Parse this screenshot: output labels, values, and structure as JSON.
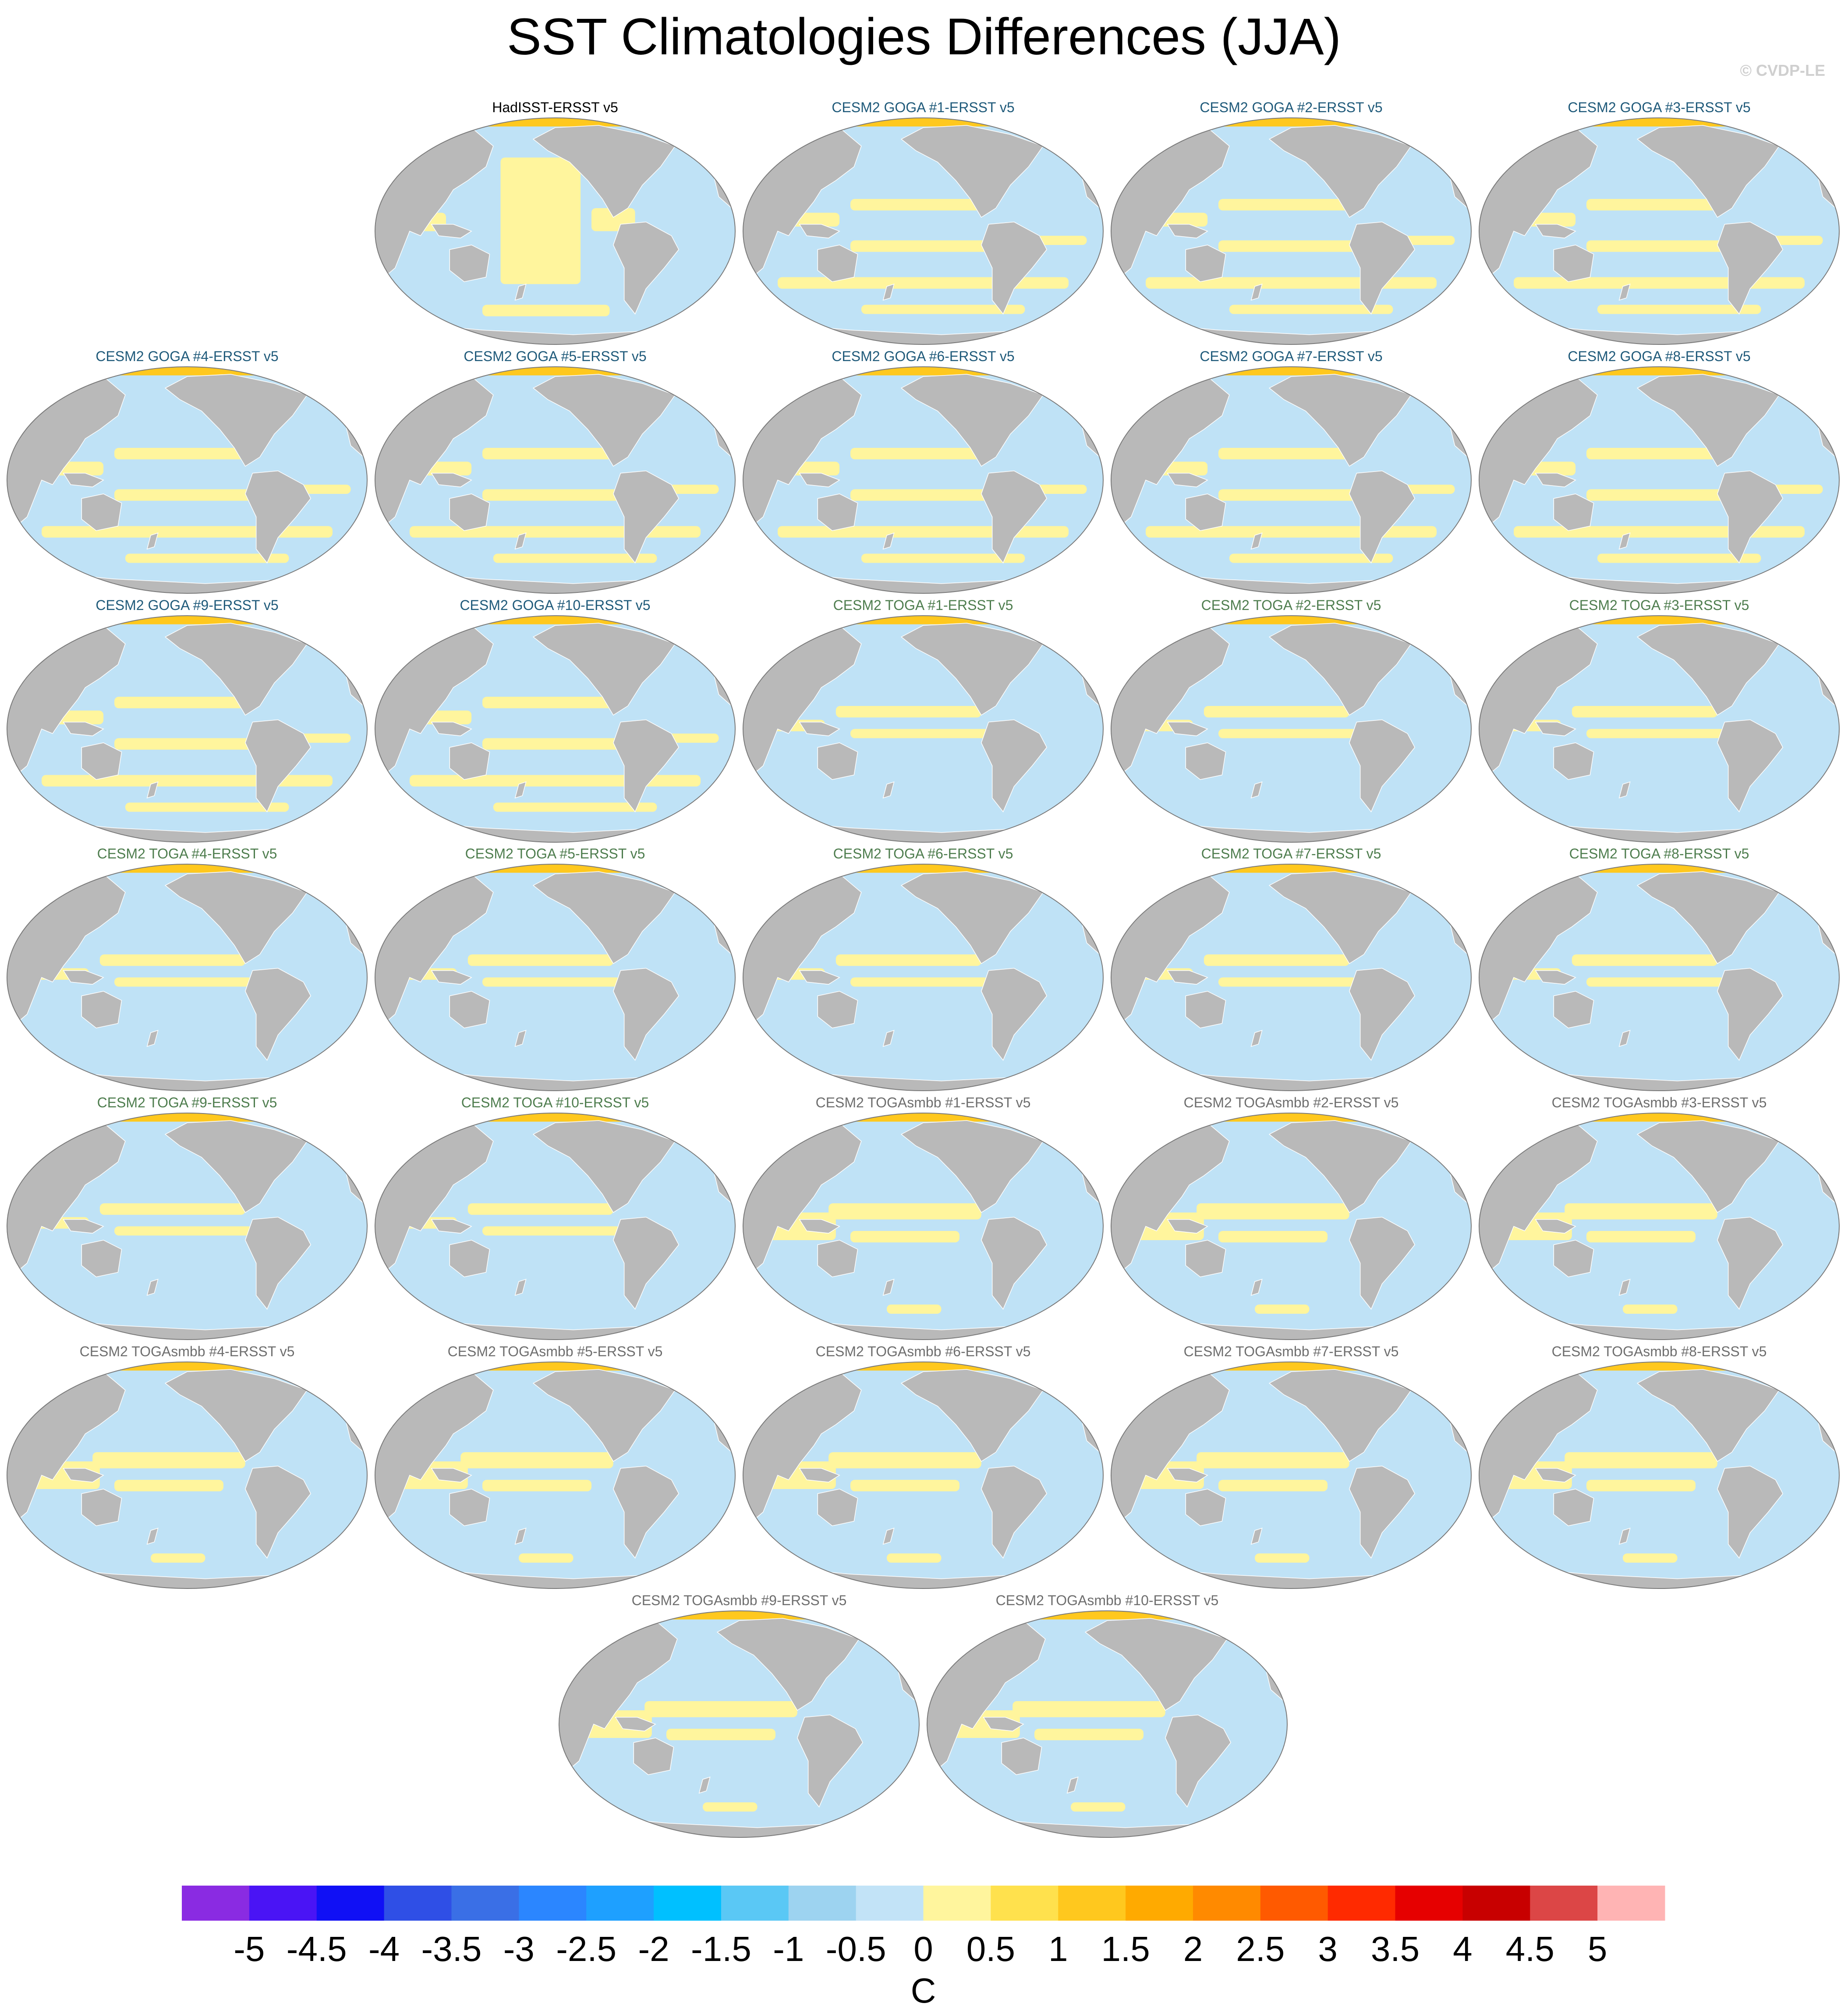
{
  "title": "SST Climatologies Differences (JJA)",
  "watermark": "© CVDP-LE",
  "colors": {
    "land": "#b9b9b9",
    "ocean_light_blue": "#bfe2f6",
    "ocean_yellow": "#fff59d",
    "arctic_orange": "#ffc81e",
    "title_obs": "#000000",
    "title_goga": "#1f5a7a",
    "title_toga": "#4e7d4e",
    "title_togasmbb": "#6e6e6e"
  },
  "chart_data": {
    "type": "map-panels",
    "projection": "Robinson (Pacific-centered)",
    "panels": [
      {
        "title": "HadISST-ERSST v5",
        "group": "obs"
      },
      {
        "title": "CESM2 GOGA #1-ERSST v5",
        "group": "goga"
      },
      {
        "title": "CESM2 GOGA #2-ERSST v5",
        "group": "goga"
      },
      {
        "title": "CESM2 GOGA #3-ERSST v5",
        "group": "goga"
      },
      {
        "title": "CESM2 GOGA #4-ERSST v5",
        "group": "goga"
      },
      {
        "title": "CESM2 GOGA #5-ERSST v5",
        "group": "goga"
      },
      {
        "title": "CESM2 GOGA #6-ERSST v5",
        "group": "goga"
      },
      {
        "title": "CESM2 GOGA #7-ERSST v5",
        "group": "goga"
      },
      {
        "title": "CESM2 GOGA #8-ERSST v5",
        "group": "goga"
      },
      {
        "title": "CESM2 GOGA #9-ERSST v5",
        "group": "goga"
      },
      {
        "title": "CESM2 GOGA #10-ERSST v5",
        "group": "goga"
      },
      {
        "title": "CESM2 TOGA #1-ERSST v5",
        "group": "toga"
      },
      {
        "title": "CESM2 TOGA #2-ERSST v5",
        "group": "toga"
      },
      {
        "title": "CESM2 TOGA #3-ERSST v5",
        "group": "toga"
      },
      {
        "title": "CESM2 TOGA #4-ERSST v5",
        "group": "toga"
      },
      {
        "title": "CESM2 TOGA #5-ERSST v5",
        "group": "toga"
      },
      {
        "title": "CESM2 TOGA #6-ERSST v5",
        "group": "toga"
      },
      {
        "title": "CESM2 TOGA #7-ERSST v5",
        "group": "toga"
      },
      {
        "title": "CESM2 TOGA #8-ERSST v5",
        "group": "toga"
      },
      {
        "title": "CESM2 TOGA #9-ERSST v5",
        "group": "toga"
      },
      {
        "title": "CESM2 TOGA #10-ERSST v5",
        "group": "toga"
      },
      {
        "title": "CESM2 TOGAsmbb #1-ERSST v5",
        "group": "togasmbb"
      },
      {
        "title": "CESM2 TOGAsmbb #2-ERSST v5",
        "group": "togasmbb"
      },
      {
        "title": "CESM2 TOGAsmbb #3-ERSST v5",
        "group": "togasmbb"
      },
      {
        "title": "CESM2 TOGAsmbb #4-ERSST v5",
        "group": "togasmbb"
      },
      {
        "title": "CESM2 TOGAsmbb #5-ERSST v5",
        "group": "togasmbb"
      },
      {
        "title": "CESM2 TOGAsmbb #6-ERSST v5",
        "group": "togasmbb"
      },
      {
        "title": "CESM2 TOGAsmbb #7-ERSST v5",
        "group": "togasmbb"
      },
      {
        "title": "CESM2 TOGAsmbb #8-ERSST v5",
        "group": "togasmbb"
      },
      {
        "title": "CESM2 TOGAsmbb #9-ERSST v5",
        "group": "togasmbb"
      },
      {
        "title": "CESM2 TOGAsmbb #10-ERSST v5",
        "group": "togasmbb"
      }
    ],
    "colorbar": {
      "units": "C",
      "ticks": [
        "-5",
        "-4.5",
        "-4",
        "-3.5",
        "-3",
        "-2.5",
        "-2",
        "-1.5",
        "-1",
        "-0.5",
        "0",
        "0.5",
        "1",
        "1.5",
        "2",
        "2.5",
        "3",
        "3.5",
        "4",
        "4.5",
        "5"
      ],
      "colors": [
        "#8a2be2",
        "#4a14f5",
        "#1010f5",
        "#2f4fe6",
        "#3a6fe6",
        "#2b86ff",
        "#1ea0ff",
        "#00c0ff",
        "#5ac8f5",
        "#9dd3f0",
        "#c2e3f7",
        "#fff59d",
        "#ffe14d",
        "#ffc81e",
        "#ffaa00",
        "#ff8a00",
        "#ff5a00",
        "#ff2a00",
        "#e60000",
        "#c80000",
        "#dc4646",
        "#ffb4b4"
      ]
    }
  }
}
